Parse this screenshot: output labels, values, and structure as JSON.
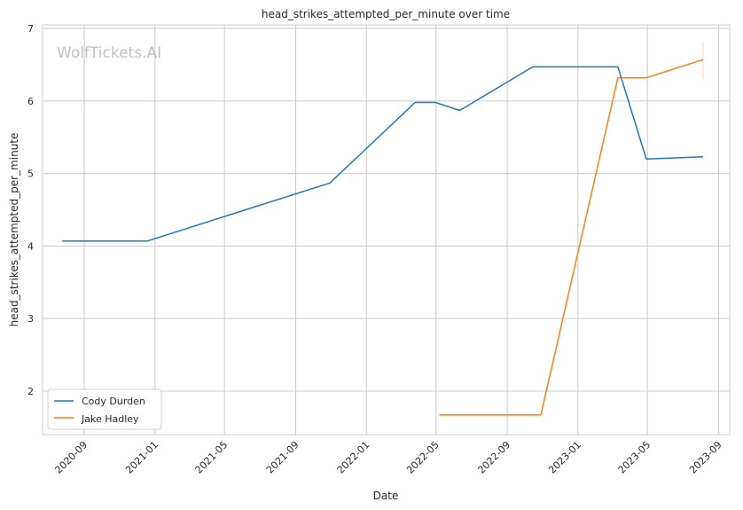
{
  "chart_data": {
    "type": "line",
    "title": "head_strikes_attempted_per_minute over time",
    "xlabel": "Date",
    "ylabel": "head_strikes_attempted_per_minute",
    "watermark": "WolfTickets.AI",
    "xlim": [
      "2020-06-21",
      "2023-09-20"
    ],
    "ylim": [
      1.4,
      7.05
    ],
    "x_ticks": [
      "2020-09",
      "2021-01",
      "2021-05",
      "2021-09",
      "2022-01",
      "2022-05",
      "2022-09",
      "2023-01",
      "2023-05",
      "2023-09"
    ],
    "y_ticks": [
      2,
      3,
      4,
      5,
      6,
      7
    ],
    "grid": true,
    "legend_position": "lower-left",
    "series": [
      {
        "name": "Cody Durden",
        "color": "#1f77b4",
        "points": [
          {
            "x": "2020-07-25",
            "y": 4.07
          },
          {
            "x": "2020-12-19",
            "y": 4.07
          },
          {
            "x": "2021-10-30",
            "y": 4.87
          },
          {
            "x": "2022-03-26",
            "y": 5.98
          },
          {
            "x": "2022-04-30",
            "y": 5.98
          },
          {
            "x": "2022-06-11",
            "y": 5.87
          },
          {
            "x": "2022-10-15",
            "y": 6.47
          },
          {
            "x": "2023-03-11",
            "y": 6.47
          },
          {
            "x": "2023-04-29",
            "y": 5.2
          },
          {
            "x": "2023-08-05",
            "y": 5.23
          }
        ]
      },
      {
        "name": "Jake Hadley",
        "color": "#ff7f0e",
        "points": [
          {
            "x": "2022-05-07",
            "y": 1.67
          },
          {
            "x": "2022-10-29",
            "y": 1.67
          },
          {
            "x": "2023-03-11",
            "y": 6.32
          },
          {
            "x": "2023-04-29",
            "y": 6.32
          },
          {
            "x": "2023-08-05",
            "y": 6.57
          }
        ],
        "error_bar": {
          "x": "2023-08-05",
          "low": 6.3,
          "high": 6.82
        }
      }
    ]
  }
}
